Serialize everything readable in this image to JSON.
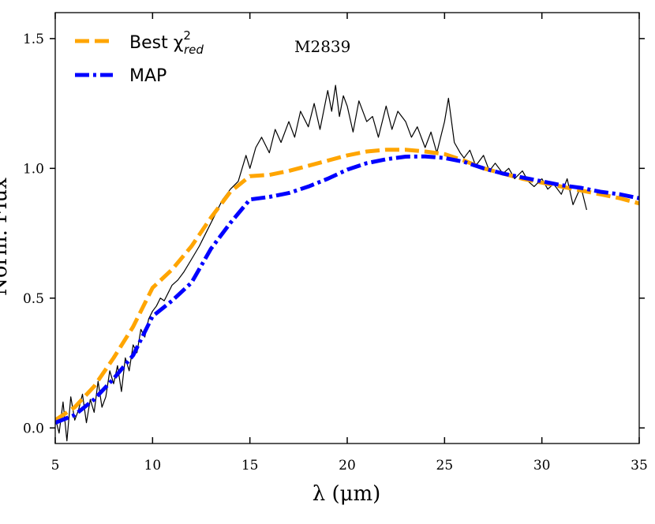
{
  "chart_data": {
    "type": "line",
    "title": "",
    "annotation": "M2839",
    "xlabel": "λ (μm)",
    "ylabel": "Norm. Flux",
    "xlim": [
      5,
      35
    ],
    "ylim": [
      -0.06,
      1.6
    ],
    "xticks": [
      5,
      10,
      15,
      20,
      25,
      30,
      35
    ],
    "yticks": [
      0.0,
      0.5,
      1.0,
      1.5
    ],
    "xtick_labels": [
      "5",
      "10",
      "15",
      "20",
      "25",
      "30",
      "35"
    ],
    "ytick_labels": [
      "0.0",
      "0.5",
      "1.0",
      "1.5"
    ],
    "legend_position": "top-left",
    "series": [
      {
        "name": "observed",
        "legend": false,
        "color": "#000000",
        "style": "solid",
        "x": [
          5.0,
          5.2,
          5.4,
          5.6,
          5.8,
          6.0,
          6.2,
          6.4,
          6.6,
          6.8,
          7.0,
          7.2,
          7.4,
          7.6,
          7.8,
          8.0,
          8.2,
          8.4,
          8.6,
          8.8,
          9.0,
          9.2,
          9.4,
          9.6,
          9.8,
          10.0,
          10.2,
          10.4,
          10.6,
          10.8,
          11.0,
          11.3,
          11.6,
          12.0,
          12.4,
          12.8,
          13.2,
          13.6,
          14.0,
          14.4,
          14.8,
          15.0,
          15.3,
          15.6,
          16.0,
          16.3,
          16.6,
          17.0,
          17.3,
          17.6,
          18.0,
          18.3,
          18.6,
          19.0,
          19.2,
          19.4,
          19.6,
          19.8,
          20.0,
          20.3,
          20.6,
          21.0,
          21.3,
          21.6,
          22.0,
          22.3,
          22.6,
          23.0,
          23.3,
          23.6,
          24.0,
          24.3,
          24.6,
          24.8,
          25.0,
          25.2,
          25.5,
          25.8,
          26.0,
          26.3,
          26.6,
          27.0,
          27.3,
          27.6,
          28.0,
          28.3,
          28.6,
          29.0,
          29.3,
          29.6,
          30.0,
          30.3,
          30.6,
          31.0,
          31.3,
          31.6,
          32.0,
          32.3
        ],
        "values": [
          0.04,
          -0.02,
          0.1,
          -0.05,
          0.12,
          0.03,
          0.07,
          0.13,
          0.02,
          0.11,
          0.06,
          0.18,
          0.08,
          0.12,
          0.22,
          0.17,
          0.24,
          0.14,
          0.27,
          0.22,
          0.32,
          0.29,
          0.38,
          0.35,
          0.42,
          0.45,
          0.47,
          0.5,
          0.49,
          0.52,
          0.55,
          0.57,
          0.6,
          0.65,
          0.7,
          0.76,
          0.82,
          0.88,
          0.92,
          0.95,
          1.05,
          1.0,
          1.08,
          1.12,
          1.06,
          1.15,
          1.1,
          1.18,
          1.12,
          1.22,
          1.16,
          1.25,
          1.15,
          1.3,
          1.22,
          1.32,
          1.2,
          1.28,
          1.24,
          1.14,
          1.26,
          1.18,
          1.2,
          1.12,
          1.24,
          1.15,
          1.22,
          1.18,
          1.12,
          1.16,
          1.08,
          1.14,
          1.06,
          1.12,
          1.18,
          1.27,
          1.1,
          1.06,
          1.04,
          1.07,
          1.01,
          1.05,
          0.99,
          1.02,
          0.98,
          1.0,
          0.96,
          0.99,
          0.95,
          0.93,
          0.96,
          0.92,
          0.94,
          0.9,
          0.96,
          0.86,
          0.93,
          0.84
        ]
      },
      {
        "name": "Best χ²red",
        "label_main": "Best χ",
        "label_sup": "2",
        "label_sub": "red",
        "legend": true,
        "color": "#ffa500",
        "style": "dashed",
        "x": [
          5,
          6,
          7,
          8,
          9,
          10,
          11,
          12,
          13,
          14,
          15,
          16,
          17,
          18,
          19,
          20,
          21,
          22,
          23,
          24,
          25,
          26,
          27,
          28,
          29,
          30,
          31,
          32,
          33,
          34,
          35
        ],
        "values": [
          0.03,
          0.08,
          0.16,
          0.27,
          0.39,
          0.54,
          0.61,
          0.7,
          0.81,
          0.91,
          0.97,
          0.975,
          0.99,
          1.01,
          1.03,
          1.05,
          1.065,
          1.072,
          1.072,
          1.065,
          1.055,
          1.03,
          1.0,
          0.98,
          0.96,
          0.945,
          0.93,
          0.915,
          0.9,
          0.885,
          0.865
        ]
      },
      {
        "name": "MAP",
        "legend": true,
        "color": "#0000ff",
        "style": "dashdot",
        "x": [
          5,
          6,
          7,
          8,
          9,
          10,
          11,
          12,
          13,
          14,
          15,
          16,
          17,
          18,
          19,
          20,
          21,
          22,
          23,
          24,
          25,
          26,
          27,
          28,
          29,
          30,
          31,
          32,
          33,
          34,
          35
        ],
        "values": [
          0.02,
          0.05,
          0.11,
          0.19,
          0.28,
          0.43,
          0.49,
          0.56,
          0.69,
          0.79,
          0.88,
          0.89,
          0.905,
          0.93,
          0.96,
          0.995,
          1.02,
          1.035,
          1.045,
          1.046,
          1.04,
          1.025,
          1.0,
          0.98,
          0.965,
          0.95,
          0.935,
          0.925,
          0.91,
          0.9,
          0.885
        ]
      }
    ]
  }
}
